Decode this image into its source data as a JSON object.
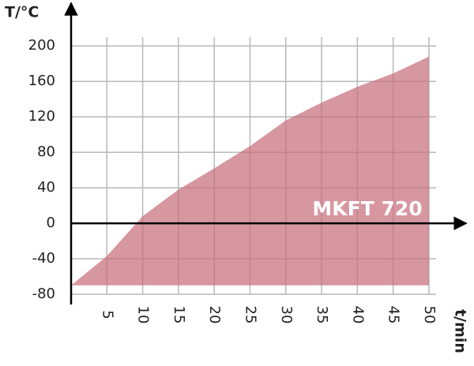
{
  "chart_data": {
    "type": "area",
    "y_label": "T/°C",
    "x_label": "t/min",
    "annotation": "MKFT 720",
    "x": [
      0,
      5,
      10,
      15,
      20,
      25,
      30,
      35,
      40,
      45,
      50
    ],
    "series": [
      {
        "name": null,
        "color": "#c86f7c",
        "values": [
          -70,
          -37,
          8,
          38,
          62,
          87,
          116,
          136,
          154,
          169,
          188
        ]
      }
    ],
    "area_base": -70,
    "xlim": [
      0,
      51
    ],
    "xticks": [
      5,
      10,
      15,
      20,
      25,
      30,
      35,
      40,
      45,
      50
    ],
    "ylim": [
      -80,
      210
    ],
    "yticks": [
      -80,
      -40,
      0,
      40,
      80,
      120,
      160,
      200
    ],
    "grid": true
  }
}
